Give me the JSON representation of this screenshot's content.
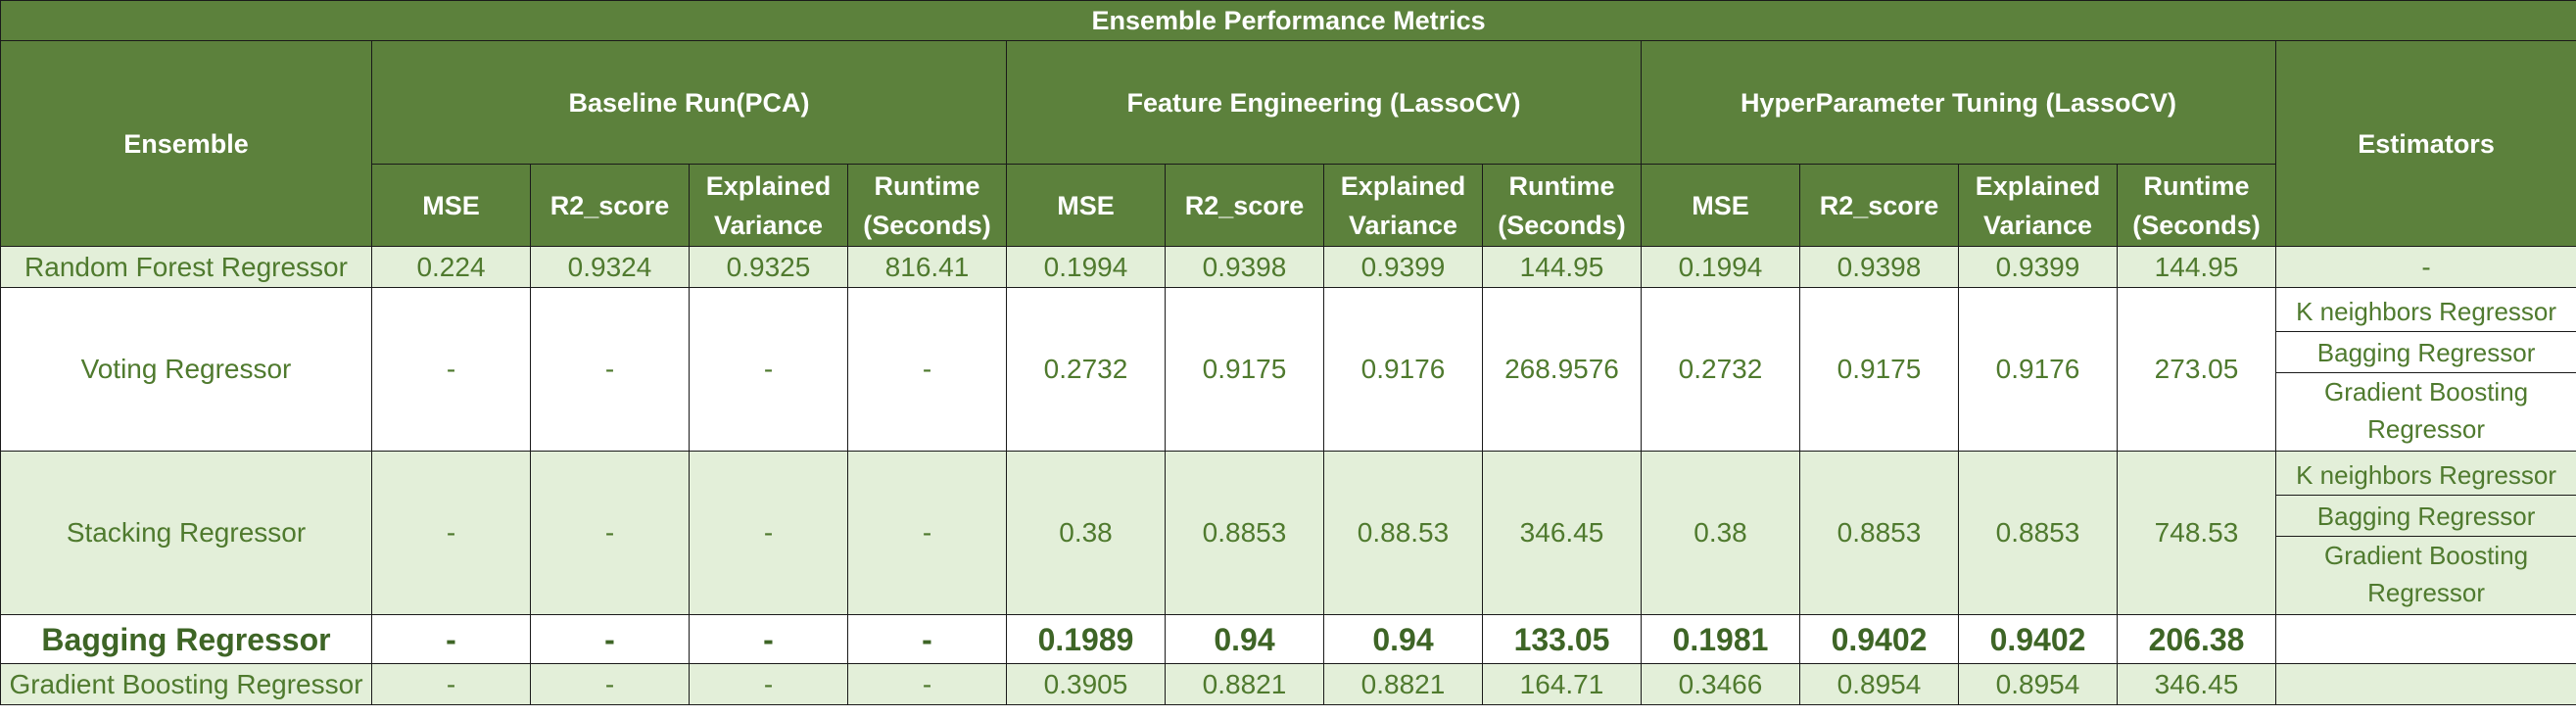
{
  "title": "Ensemble Performance Metrics",
  "header": {
    "ensemble": "Ensemble",
    "estimators": "Estimators",
    "groups": [
      "Baseline Run(PCA)",
      "Feature Engineering (LassoCV)",
      "HyperParameter Tuning (LassoCV)"
    ],
    "metrics": [
      "MSE",
      "R2_score",
      "Explained Variance",
      "Runtime (Seconds)"
    ]
  },
  "rows": [
    {
      "name": "Random Forest Regressor",
      "baseline": [
        "0.224",
        "0.9324",
        "0.9325",
        "816.41"
      ],
      "feature": [
        "0.1994",
        "0.9398",
        "0.9399",
        "144.95"
      ],
      "tuning": [
        "0.1994",
        "0.9398",
        "0.9399",
        "144.95"
      ],
      "estimators": [
        "-"
      ]
    },
    {
      "name": "Voting Regressor",
      "baseline": [
        "-",
        "-",
        "-",
        "-"
      ],
      "feature": [
        "0.2732",
        "0.9175",
        "0.9176",
        "268.9576"
      ],
      "tuning": [
        "0.2732",
        "0.9175",
        "0.9176",
        "273.05"
      ],
      "estimators": [
        "K neighbors Regressor",
        "Bagging Regressor",
        "Gradient Boosting Regressor"
      ]
    },
    {
      "name": "Stacking Regressor",
      "baseline": [
        "-",
        "-",
        "-",
        "-"
      ],
      "feature": [
        "0.38",
        "0.8853",
        "0.88.53",
        "346.45"
      ],
      "tuning": [
        "0.38",
        "0.8853",
        "0.8853",
        "748.53"
      ],
      "estimators": [
        "K neighbors Regressor",
        "Bagging Regressor",
        "Gradient Boosting Regressor"
      ]
    },
    {
      "name": "Bagging Regressor",
      "baseline": [
        "-",
        "-",
        "-",
        "-"
      ],
      "feature": [
        "0.1989",
        "0.94",
        "0.94",
        "133.05"
      ],
      "tuning": [
        "0.1981",
        "0.9402",
        "0.9402",
        "206.38"
      ],
      "estimators": [
        ""
      ]
    },
    {
      "name": "Gradient Boosting Regressor",
      "baseline": [
        "-",
        "-",
        "-",
        "-"
      ],
      "feature": [
        "0.3905",
        "0.8821",
        "0.8821",
        "164.71"
      ],
      "tuning": [
        "0.3466",
        "0.8954",
        "0.8954",
        "346.45"
      ],
      "estimators": [
        ""
      ]
    }
  ],
  "colors": {
    "header_bg": "#5c813c",
    "header_text": "#ffffff",
    "row_green": "#e3efd9",
    "row_white": "#ffffff",
    "cell_text": "#4f7a2e"
  }
}
